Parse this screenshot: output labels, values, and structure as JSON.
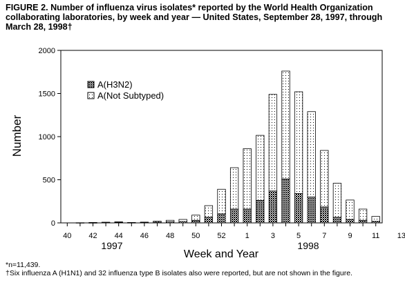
{
  "title": "FIGURE 2. Number of influenza virus isolates* reported by the World Health Organization collaborating laboratories, by week and year — United States, September 28, 1997, through March 28, 1998†",
  "footnotes": [
    "*n=11,439.",
    "†Six influenza A (H1N1) and 32 influenza type B isolates also were reported, but are not shown in the figure."
  ],
  "chart_data": {
    "type": "bar",
    "stacked": true,
    "xlabel": "Week and Year",
    "ylabel": "Number",
    "ylim": [
      0,
      2000
    ],
    "yticks": [
      0,
      500,
      1000,
      1500,
      2000
    ],
    "xtick_labels": [
      "40",
      "42",
      "44",
      "46",
      "48",
      "50",
      "52",
      "1",
      "3",
      "5",
      "7",
      "9",
      "11",
      "13"
    ],
    "year_labels": [
      "1997",
      "1998"
    ],
    "legend_position": "upper-left",
    "categories": [
      "41",
      "42",
      "43",
      "44",
      "45",
      "46",
      "47",
      "48",
      "49",
      "50",
      "51",
      "52",
      "1",
      "2",
      "3",
      "4",
      "5",
      "6",
      "7",
      "8",
      "9",
      "10",
      "11",
      "12"
    ],
    "series": [
      {
        "name": "A(H3N2)",
        "pattern": "crosshatch",
        "values": [
          0,
          2,
          4,
          6,
          3,
          4,
          8,
          12,
          15,
          30,
          65,
          105,
          160,
          160,
          260,
          370,
          510,
          340,
          300,
          185,
          65,
          40,
          30,
          18
        ]
      },
      {
        "name": "A(Not Subtyped)",
        "pattern": "dots",
        "values": [
          2,
          3,
          4,
          6,
          2,
          5,
          12,
          18,
          25,
          60,
          135,
          285,
          480,
          700,
          755,
          1120,
          1250,
          1180,
          990,
          655,
          395,
          225,
          130,
          57
        ]
      }
    ]
  }
}
